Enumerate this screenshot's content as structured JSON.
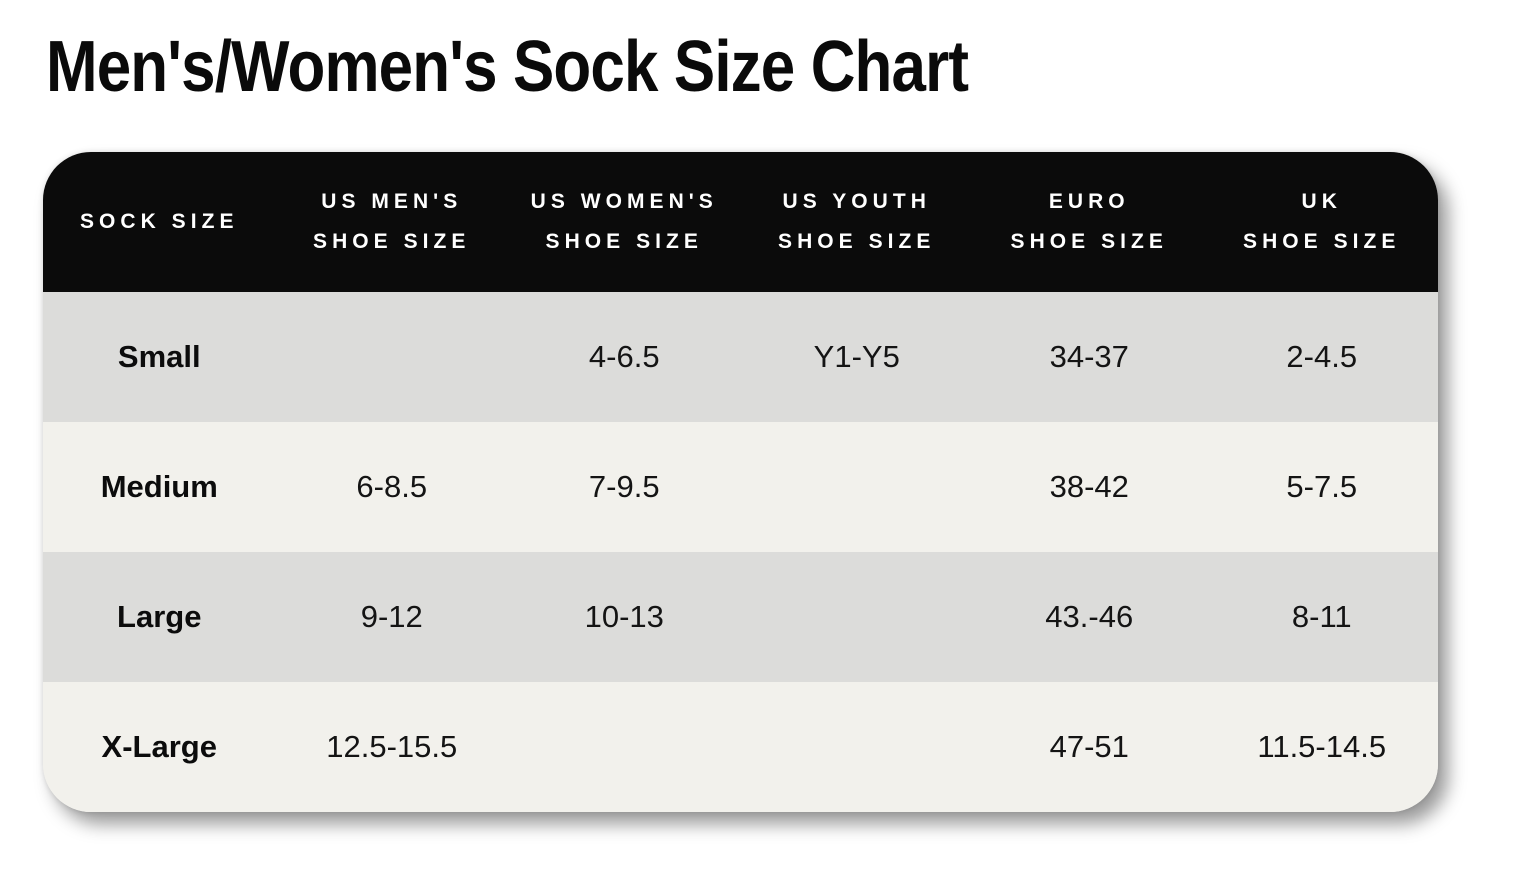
{
  "title": "Men's/Women's Sock Size Chart",
  "colors": {
    "page_background": "#ffffff",
    "header_background": "#0b0b0b",
    "header_text": "#ffffff",
    "row_gray": "#dcdcda",
    "row_cream": "#f2f1ec",
    "body_text": "#141414"
  },
  "chart_data": {
    "type": "table",
    "title": "Men's/Women's Sock Size Chart",
    "columns": [
      {
        "id": "sock_size",
        "line1": "SOCK SIZE",
        "line2": ""
      },
      {
        "id": "us_mens",
        "line1": "US MEN'S",
        "line2": "SHOE SIZE"
      },
      {
        "id": "us_womens",
        "line1": "US WOMEN'S",
        "line2": "SHOE SIZE"
      },
      {
        "id": "us_youth",
        "line1": "US YOUTH",
        "line2": "SHOE SIZE"
      },
      {
        "id": "euro",
        "line1": "EURO",
        "line2": "SHOE SIZE"
      },
      {
        "id": "uk",
        "line1": "UK",
        "line2": "SHOE SIZE"
      }
    ],
    "rows": [
      {
        "sock_size": "Small",
        "us_mens": "",
        "us_womens": "4-6.5",
        "us_youth": "Y1-Y5",
        "euro": "34-37",
        "uk": "2-4.5"
      },
      {
        "sock_size": "Medium",
        "us_mens": "6-8.5",
        "us_womens": "7-9.5",
        "us_youth": "",
        "euro": "38-42",
        "uk": "5-7.5"
      },
      {
        "sock_size": "Large",
        "us_mens": "9-12",
        "us_womens": "10-13",
        "us_youth": "",
        "euro": "43.-46",
        "uk": "8-11"
      },
      {
        "sock_size": "X-Large",
        "us_mens": "12.5-15.5",
        "us_womens": "",
        "us_youth": "",
        "euro": "47-51",
        "uk": "11.5-14.5"
      }
    ]
  }
}
